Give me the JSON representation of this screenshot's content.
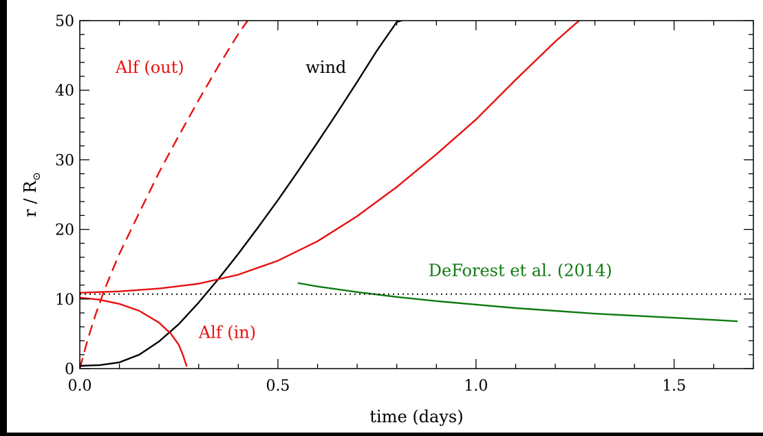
{
  "chart_data": {
    "type": "line",
    "title": "",
    "xlabel": "time (days)",
    "ylabel_main": "r / R",
    "ylabel_sub": "⊙",
    "xlim": [
      0,
      1.7
    ],
    "ylim": [
      0,
      50
    ],
    "x_ticks": [
      {
        "value": 0.0,
        "label": "0.0"
      },
      {
        "value": 0.5,
        "label": "0.5"
      },
      {
        "value": 1.0,
        "label": "1.0"
      },
      {
        "value": 1.5,
        "label": "1.5"
      }
    ],
    "y_ticks": [
      {
        "value": 0,
        "label": "0"
      },
      {
        "value": 10,
        "label": "10"
      },
      {
        "value": 20,
        "label": "20"
      },
      {
        "value": 30,
        "label": "30"
      },
      {
        "value": 40,
        "label": "40"
      },
      {
        "value": 50,
        "label": "50"
      }
    ],
    "x_minor_step": 0.1,
    "y_minor_step": 2,
    "series": [
      {
        "label": "Alf (out)",
        "color": "#e8100f",
        "style": "dashed",
        "x": [
          0.0,
          0.02,
          0.04,
          0.06,
          0.08,
          0.1,
          0.15,
          0.2,
          0.25,
          0.3,
          0.35,
          0.4,
          0.43
        ],
        "y": [
          0.0,
          4.2,
          7.8,
          11.0,
          13.8,
          16.5,
          22.4,
          28.2,
          33.5,
          38.6,
          43.5,
          48.1,
          50.5
        ]
      },
      {
        "label": "wind",
        "color": "#000000",
        "style": "solid",
        "x": [
          0.0,
          0.05,
          0.1,
          0.15,
          0.2,
          0.25,
          0.3,
          0.35,
          0.4,
          0.45,
          0.5,
          0.55,
          0.6,
          0.65,
          0.7,
          0.75,
          0.8,
          0.84
        ],
        "y": [
          0.4,
          0.5,
          0.9,
          2.0,
          3.9,
          6.4,
          9.5,
          12.9,
          16.5,
          20.3,
          24.2,
          28.3,
          32.5,
          36.8,
          41.2,
          45.7,
          49.8,
          50.5
        ]
      },
      {
        "label": "",
        "color": "#e8100f",
        "style": "solid",
        "x": [
          0.0,
          0.1,
          0.2,
          0.3,
          0.4,
          0.5,
          0.6,
          0.7,
          0.8,
          0.9,
          1.0,
          1.1,
          1.2,
          1.27
        ],
        "y": [
          10.9,
          11.1,
          11.5,
          12.2,
          13.5,
          15.5,
          18.3,
          21.9,
          26.1,
          30.8,
          35.8,
          41.5,
          47.0,
          50.5
        ]
      },
      {
        "label": "Alf (in)",
        "color": "#e8100f",
        "style": "solid",
        "x": [
          0.0,
          0.05,
          0.1,
          0.15,
          0.2,
          0.23,
          0.25,
          0.26,
          0.27
        ],
        "y": [
          10.2,
          9.9,
          9.3,
          8.3,
          6.6,
          5.0,
          3.4,
          2.0,
          0.3
        ]
      },
      {
        "label": "DeForest et al. (2014)",
        "color": "#0f7a12",
        "style": "solid",
        "x": [
          0.55,
          0.6,
          0.7,
          0.8,
          0.9,
          1.0,
          1.1,
          1.2,
          1.3,
          1.4,
          1.5,
          1.6,
          1.66
        ],
        "y": [
          12.3,
          11.8,
          11.0,
          10.3,
          9.7,
          9.2,
          8.7,
          8.3,
          7.9,
          7.6,
          7.3,
          7.0,
          6.8
        ]
      },
      {
        "label": "",
        "color": "#000000",
        "style": "dotted",
        "x": [
          0.0,
          1.7
        ],
        "y": [
          10.7,
          10.7
        ]
      }
    ],
    "annotations": [
      {
        "text": "Alf (out)",
        "color": "#e8100f",
        "x": 0.09,
        "y": 42.5
      },
      {
        "text": "wind",
        "color": "#000000",
        "x": 0.57,
        "y": 42.5
      },
      {
        "text": "Alf (in)",
        "color": "#e8100f",
        "x": 0.3,
        "y": 4.4
      },
      {
        "text": "DeForest et al. (2014)",
        "color": "#0f7a12",
        "x": 0.88,
        "y": 13.3
      }
    ],
    "grid": false,
    "legend": "none"
  }
}
